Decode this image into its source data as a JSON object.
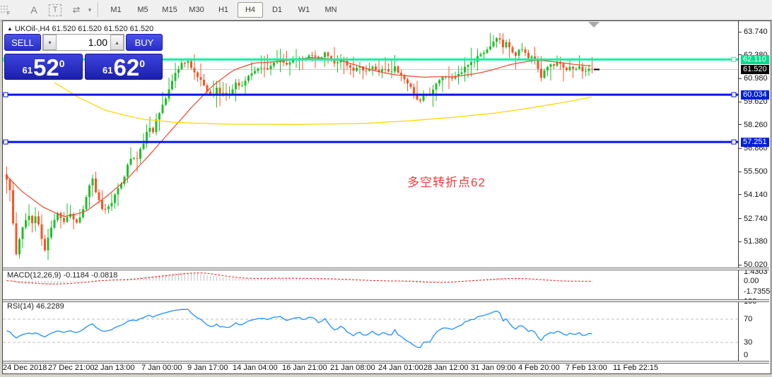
{
  "toolbar": {
    "icons": [
      {
        "name": "fibonacci-lines-icon",
        "glyph": "F"
      },
      {
        "name": "text-label-icon",
        "glyph": "A"
      },
      {
        "name": "text-box-icon",
        "glyph": "T"
      },
      {
        "name": "arrows-shapes-icon",
        "glyph": "⇄"
      },
      {
        "name": "dropdown-caret-icon",
        "glyph": "▾"
      }
    ],
    "timeframes": [
      "M1",
      "M5",
      "M15",
      "M30",
      "H1",
      "H4",
      "D1",
      "W1",
      "MN"
    ],
    "active_timeframe": "H4"
  },
  "chart": {
    "marker": "▲",
    "title": "UKOil-,H4  61.520 61.520 61.520 61.520",
    "annotation": "多空转折点62",
    "trade_panel": {
      "sell_label": "SELL",
      "buy_label": "BUY",
      "volume": "1.00",
      "spin_up": "▴",
      "spin_down": "▾",
      "sell_price": {
        "small": "61",
        "big": "52",
        "sup": "0"
      },
      "buy_price": {
        "small": "61",
        "big": "62",
        "sup": "0"
      }
    },
    "price_axis": {
      "labels": [
        "63.740",
        "62.380",
        "60.980",
        "59.620",
        "58.260",
        "56.860",
        "55.500",
        "54.140",
        "52.740",
        "51.380",
        "50.020"
      ],
      "tagged": [
        {
          "value": "62.110",
          "price": 62.11,
          "bg": "#00dd8e"
        },
        {
          "value": "61.520",
          "price": 61.52,
          "bg": "#000000"
        },
        {
          "value": "60.034",
          "price": 60.034,
          "bg": "#0020d8"
        },
        {
          "value": "57.251",
          "price": 57.251,
          "bg": "#0020d8"
        }
      ]
    },
    "macd_panel": {
      "label": "MACD(12,26,9) -0.1184 -0.0818",
      "axis": [
        {
          "text": "1.4303",
          "value": 1.4303
        },
        {
          "text": "0.00",
          "value": 0.0
        },
        {
          "text": "-1.7355",
          "value": -1.7355
        }
      ]
    },
    "rsi_panel": {
      "label": "RSI(14) 46.2289",
      "axis": [
        {
          "text": "100",
          "value": 100
        },
        {
          "text": "70",
          "value": 70
        },
        {
          "text": "30",
          "value": 30
        },
        {
          "text": "0",
          "value": 0
        }
      ]
    },
    "dates": [
      "24 Dec 2018",
      "27 Dec 21:00",
      "2 Jan 13:00",
      "7 Jan 00:00",
      "9 Jan 17:00",
      "14 Jan 04:00",
      "16 Jan 21:00",
      "21 Jan 08:00",
      "24 Jan 01:00",
      "28 Jan 12:00",
      "31 Jan 09:00",
      "4 Feb 20:00",
      "7 Feb 13:00",
      "11 Feb 22:15"
    ]
  },
  "chart_data": {
    "type": "candlestick",
    "symbol": "UKOil-",
    "timeframe": "H4",
    "bid": 61.52,
    "ask": 61.62,
    "y_range": [
      50.02,
      63.74
    ],
    "bars": 185,
    "x_start": 8,
    "x_step": 4.5,
    "colors": {
      "up": "#1fbf2b",
      "down": "#fa5428",
      "ma_fast": "#e8482c",
      "ma_slow": "#ffd700",
      "macd_hist": "#c0c0c0",
      "macd_signal": "#e02020",
      "rsi_line": "#1e90ff"
    },
    "close_anchors": [
      [
        8,
        55.1
      ],
      [
        12,
        54.5
      ],
      [
        15,
        53.6
      ],
      [
        20,
        51.0
      ],
      [
        23,
        50.4
      ],
      [
        26,
        51.5
      ],
      [
        32,
        52.4
      ],
      [
        38,
        53.1
      ],
      [
        44,
        52.5
      ],
      [
        50,
        53.0
      ],
      [
        56,
        51.9
      ],
      [
        62,
        50.8
      ],
      [
        68,
        51.9
      ],
      [
        74,
        52.6
      ],
      [
        80,
        53.1
      ],
      [
        89,
        52.6
      ],
      [
        98,
        53.0
      ],
      [
        107,
        52.5
      ],
      [
        116,
        53.2
      ],
      [
        122,
        54.2
      ],
      [
        128,
        55.3
      ],
      [
        134,
        54.4
      ],
      [
        140,
        53.6
      ],
      [
        146,
        53.1
      ],
      [
        155,
        53.6
      ],
      [
        164,
        54.4
      ],
      [
        173,
        55.1
      ],
      [
        179,
        55.9
      ],
      [
        185,
        56.5
      ],
      [
        191,
        56.1
      ],
      [
        197,
        56.8
      ],
      [
        203,
        57.4
      ],
      [
        209,
        58.2
      ],
      [
        215,
        57.8
      ],
      [
        221,
        58.7
      ],
      [
        227,
        59.3
      ],
      [
        233,
        59.9
      ],
      [
        239,
        60.6
      ],
      [
        245,
        61.1
      ],
      [
        251,
        61.6
      ],
      [
        257,
        61.9
      ],
      [
        263,
        62.1
      ],
      [
        269,
        61.7
      ],
      [
        275,
        61.3
      ],
      [
        281,
        61.0
      ],
      [
        287,
        60.6
      ],
      [
        293,
        60.2
      ],
      [
        299,
        60.0
      ],
      [
        305,
        60.4
      ],
      [
        311,
        60.1
      ],
      [
        320,
        59.95
      ],
      [
        326,
        60.3
      ],
      [
        332,
        60.7
      ],
      [
        338,
        60.4
      ],
      [
        344,
        60.8
      ],
      [
        350,
        61.1
      ],
      [
        359,
        61.4
      ],
      [
        368,
        61.7
      ],
      [
        377,
        61.5
      ],
      [
        386,
        61.9
      ],
      [
        395,
        62.1
      ],
      [
        404,
        61.8
      ],
      [
        413,
        62.0
      ],
      [
        422,
        62.3
      ],
      [
        431,
        62.1
      ],
      [
        440,
        62.4
      ],
      [
        449,
        62.2
      ],
      [
        458,
        62.5
      ],
      [
        464,
        62.2
      ],
      [
        473,
        61.9
      ],
      [
        482,
        62.2
      ],
      [
        488,
        61.8
      ],
      [
        497,
        61.5
      ],
      [
        506,
        61.8
      ],
      [
        515,
        61.4
      ],
      [
        524,
        61.7
      ],
      [
        533,
        61.4
      ],
      [
        542,
        61.6
      ],
      [
        548,
        61.3
      ],
      [
        557,
        61.6
      ],
      [
        566,
        61.2
      ],
      [
        575,
        60.8
      ],
      [
        581,
        60.3
      ],
      [
        587,
        59.8
      ],
      [
        593,
        59.6
      ],
      [
        599,
        60.1
      ],
      [
        605,
        59.9
      ],
      [
        611,
        60.4
      ],
      [
        620,
        60.9
      ],
      [
        629,
        61.2
      ],
      [
        638,
        61.0
      ],
      [
        647,
        61.3
      ],
      [
        656,
        61.6
      ],
      [
        665,
        61.9
      ],
      [
        674,
        62.2
      ],
      [
        683,
        62.5
      ],
      [
        692,
        62.9
      ],
      [
        698,
        63.2
      ],
      [
        704,
        63.35
      ],
      [
        710,
        62.9
      ],
      [
        716,
        63.15
      ],
      [
        722,
        62.7
      ],
      [
        728,
        62.4
      ],
      [
        734,
        62.85
      ],
      [
        740,
        62.5
      ],
      [
        746,
        62.1
      ],
      [
        752,
        62.35
      ],
      [
        758,
        61.8
      ],
      [
        764,
        61.0
      ],
      [
        770,
        61.5
      ],
      [
        776,
        61.95
      ],
      [
        782,
        61.7
      ],
      [
        788,
        62.0
      ],
      [
        794,
        61.75
      ],
      [
        800,
        61.45
      ],
      [
        806,
        61.7
      ],
      [
        812,
        61.5
      ],
      [
        818,
        61.65
      ],
      [
        824,
        61.3
      ],
      [
        830,
        61.55
      ],
      [
        837,
        61.52
      ]
    ],
    "h_lines": [
      {
        "price": 62.11,
        "color": "#0bf2a0",
        "width": 3
      },
      {
        "price": 60.034,
        "color": "#0018e8",
        "width": 3
      },
      {
        "price": 57.251,
        "color": "#0018e8",
        "width": 3
      }
    ],
    "current_price_line": {
      "price": 61.52,
      "color": "#c8c8c8"
    },
    "ma_fast": [
      [
        8,
        55.3
      ],
      [
        30,
        54.3
      ],
      [
        60,
        53.4
      ],
      [
        90,
        52.9
      ],
      [
        120,
        53.2
      ],
      [
        150,
        54.0
      ],
      [
        180,
        55.0
      ],
      [
        210,
        56.4
      ],
      [
        240,
        57.9
      ],
      [
        270,
        59.3
      ],
      [
        300,
        60.5
      ],
      [
        330,
        61.4
      ],
      [
        360,
        61.9
      ],
      [
        400,
        62.1
      ],
      [
        440,
        62.2
      ],
      [
        480,
        62.0
      ],
      [
        520,
        61.6
      ],
      [
        560,
        61.25
      ],
      [
        600,
        61.0
      ],
      [
        640,
        61.05
      ],
      [
        680,
        61.4
      ],
      [
        720,
        61.8
      ],
      [
        760,
        62.0
      ],
      [
        800,
        61.9
      ],
      [
        837,
        61.8
      ]
    ],
    "ma_slow": [
      [
        77,
        60.75
      ],
      [
        110,
        59.9
      ],
      [
        150,
        59.1
      ],
      [
        200,
        58.6
      ],
      [
        250,
        58.4
      ],
      [
        320,
        58.3
      ],
      [
        420,
        58.28
      ],
      [
        520,
        58.35
      ],
      [
        580,
        58.5
      ],
      [
        640,
        58.7
      ],
      [
        700,
        58.95
      ],
      [
        750,
        59.25
      ],
      [
        800,
        59.6
      ],
      [
        837,
        59.9
      ]
    ],
    "macd": {
      "fast": 12,
      "slow": 26,
      "signal": 9,
      "display_values": [
        -0.1184,
        -0.0818
      ],
      "axis_range": [
        -1.7355,
        1.4303
      ]
    },
    "rsi": {
      "period": 14,
      "display_value": 46.2289,
      "levels": [
        70,
        30
      ],
      "axis_range": [
        0,
        100
      ]
    },
    "dates_x": [
      2,
      66,
      131,
      198,
      263,
      327,
      397,
      465,
      533,
      597,
      664,
      731,
      798,
      865
    ]
  }
}
